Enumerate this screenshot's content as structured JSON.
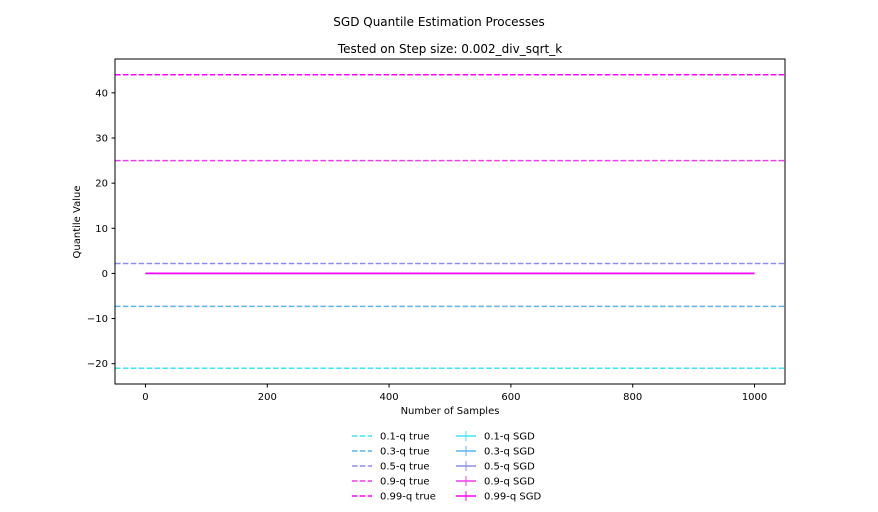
{
  "chart_data": {
    "type": "line",
    "suptitle": "SGD Quantile Estimation Processes",
    "title": "Tested on Step size: 0.002_div_sqrt_k",
    "xlabel": "Number of Samples",
    "ylabel": "Quantile Value",
    "xlim": [
      -50,
      1050
    ],
    "ylim": [
      -24.5,
      47.5
    ],
    "xticks": [
      0,
      200,
      400,
      600,
      800,
      1000
    ],
    "yticks": [
      -20,
      -10,
      0,
      10,
      20,
      30,
      40
    ],
    "grid": false,
    "legend_position": "below-center",
    "series": [
      {
        "name": "0.1-q true",
        "kind": "hline",
        "style": "dashed",
        "color": "#40e6f5",
        "y": -21.0
      },
      {
        "name": "0.3-q true",
        "kind": "hline",
        "style": "dashed",
        "color": "#5cb4f0",
        "y": -7.3
      },
      {
        "name": "0.5-q true",
        "kind": "hline",
        "style": "dashed",
        "color": "#8c8cf2",
        "y": 2.2
      },
      {
        "name": "0.9-q true",
        "kind": "hline",
        "style": "dashed",
        "color": "#f03cf0",
        "y": 25.0
      },
      {
        "name": "0.99-q true",
        "kind": "hline",
        "style": "dashed",
        "color": "#ff00ff",
        "y": 44.0
      },
      {
        "name": "0.1-q SGD",
        "kind": "line",
        "style": "solid",
        "color": "#40e6f5",
        "x": [
          0,
          1000
        ],
        "values": [
          0.0,
          0.0
        ]
      },
      {
        "name": "0.3-q SGD",
        "kind": "line",
        "style": "solid",
        "color": "#5cb4f0",
        "x": [
          0,
          1000
        ],
        "values": [
          0.0,
          0.0
        ]
      },
      {
        "name": "0.5-q SGD",
        "kind": "line",
        "style": "solid",
        "color": "#8c8cf2",
        "x": [
          0,
          1000
        ],
        "values": [
          0.0,
          0.0
        ]
      },
      {
        "name": "0.9-q SGD",
        "kind": "line",
        "style": "solid",
        "color": "#f03cf0",
        "x": [
          0,
          1000
        ],
        "values": [
          0.0,
          0.0
        ]
      },
      {
        "name": "0.99-q SGD",
        "kind": "line",
        "style": "solid",
        "color": "#ff00ff",
        "x": [
          0,
          1000
        ],
        "values": [
          0.0,
          0.0
        ]
      }
    ]
  }
}
